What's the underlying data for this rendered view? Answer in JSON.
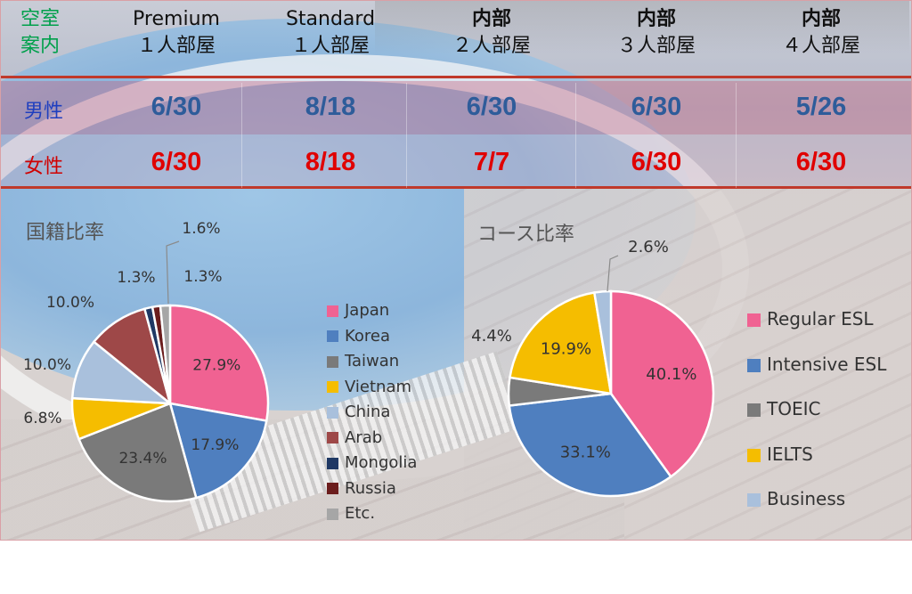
{
  "table": {
    "corner": [
      "空室",
      "案内"
    ],
    "columns": [
      {
        "line1": "Premium",
        "line2": "１人部屋",
        "bold": false
      },
      {
        "line1": "Standard",
        "line2": "１人部屋",
        "bold": false
      },
      {
        "line1": "内部",
        "line2": "２人部屋",
        "bold": true
      },
      {
        "line1": "内部",
        "line2": "３人部屋",
        "bold": true
      },
      {
        "line1": "内部",
        "line2": "４人部屋",
        "bold": true
      }
    ],
    "rows": [
      {
        "label": "男性",
        "label_color": "#1f3fbf",
        "value_color": "#2e5c9a",
        "values": [
          "6/30",
          "8/18",
          "6/30",
          "6/30",
          "5/26"
        ]
      },
      {
        "label": "女性",
        "label_color": "#d00000",
        "value_color": "#e00000",
        "values": [
          "6/30",
          "8/18",
          "7/7",
          "6/30",
          "6/30"
        ]
      }
    ]
  },
  "chart_data": [
    {
      "type": "pie",
      "title": "国籍比率",
      "series": [
        {
          "name": "Japan",
          "value": 27.9,
          "label": "27.9%",
          "color": "#f06292"
        },
        {
          "name": "Korea",
          "value": 17.9,
          "label": "17.9%",
          "color": "#4f7fbf"
        },
        {
          "name": "Taiwan",
          "value": 23.4,
          "label": "23.4%",
          "color": "#7a7a7a"
        },
        {
          "name": "Vietnam",
          "value": 6.8,
          "label": "6.8%",
          "color": "#f5bd00"
        },
        {
          "name": "China",
          "value": 10.0,
          "label": "10.0%",
          "color": "#a9c0dc"
        },
        {
          "name": "Arab",
          "value": 10.0,
          "label": "10.0%",
          "color": "#9e4848"
        },
        {
          "name": "Mongolia",
          "value": 1.3,
          "label": "1.3%",
          "color": "#1f3864"
        },
        {
          "name": "Russia",
          "value": 1.3,
          "label": "1.3%",
          "color": "#6b1d1d"
        },
        {
          "name": "Etc.",
          "value": 1.6,
          "label": "1.6%",
          "color": "#a6a6a6"
        }
      ],
      "legend_position": "right"
    },
    {
      "type": "pie",
      "title": "コース比率",
      "series": [
        {
          "name": "Regular ESL",
          "value": 40.1,
          "label": "40.1%",
          "color": "#f06292"
        },
        {
          "name": "Intensive ESL",
          "value": 33.1,
          "label": "33.1%",
          "color": "#4f7fbf"
        },
        {
          "name": "TOEIC",
          "value": 4.4,
          "label": "4.4%",
          "color": "#7a7a7a"
        },
        {
          "name": "IELTS",
          "value": 19.9,
          "label": "19.9%",
          "color": "#f5bd00"
        },
        {
          "name": "Business",
          "value": 2.6,
          "label": "2.6%",
          "color": "#a9c0dc"
        }
      ],
      "legend_position": "right"
    }
  ]
}
